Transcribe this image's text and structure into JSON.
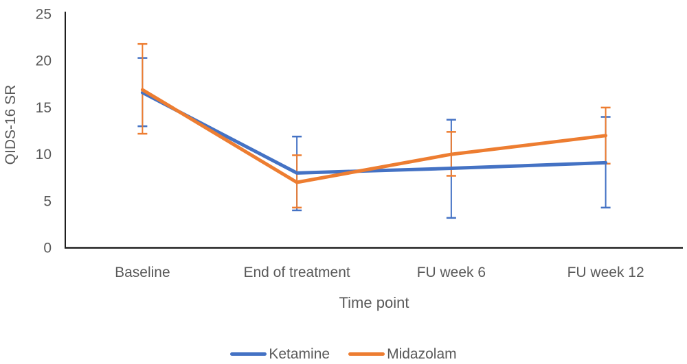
{
  "chart_data": {
    "type": "line",
    "title": "",
    "categories": [
      "Baseline",
      "End of treatment",
      "FU week 6",
      "FU week 12"
    ],
    "xlabel": "Time point",
    "ylabel": "QIDS-16 SR",
    "ylim": [
      0,
      25
    ],
    "yticks": [
      0,
      5,
      10,
      15,
      20,
      25
    ],
    "grid": false,
    "legend_position": "bottom-center",
    "error_bars": true,
    "series": [
      {
        "name": "Ketamine",
        "color": "#4472C4",
        "values": [
          16.6,
          8.0,
          8.5,
          9.1
        ],
        "error_bar_low": [
          13.0,
          4.0,
          3.2,
          4.3
        ],
        "error_bar_high": [
          20.3,
          11.9,
          13.7,
          14.0
        ]
      },
      {
        "name": "Midazolam",
        "color": "#ED7D31",
        "values": [
          16.9,
          7.0,
          10.0,
          12.0
        ],
        "error_bar_low": [
          12.2,
          4.3,
          7.7,
          9.0
        ],
        "error_bar_high": [
          21.8,
          9.9,
          12.4,
          15.0
        ]
      }
    ],
    "axis_text_color": "#595959",
    "axis_line_color": "#1f1f1f",
    "background_color": "#ffffff"
  }
}
